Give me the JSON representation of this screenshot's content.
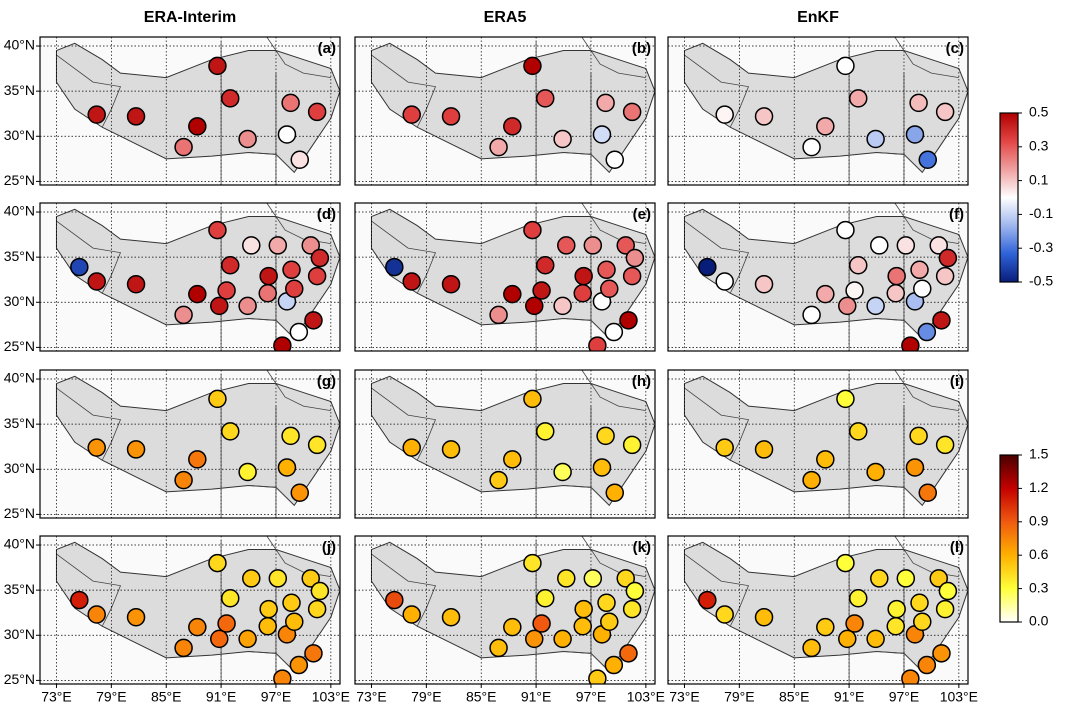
{
  "column_titles": [
    "ERA-Interim",
    "ERA5",
    "EnKF"
  ],
  "axes": {
    "xlim": [
      71.2,
      104
    ],
    "ylim": [
      24.6,
      41
    ],
    "xticks": [
      {
        "value": 73,
        "label": "73°E"
      },
      {
        "value": 79,
        "label": "79°E"
      },
      {
        "value": 85,
        "label": "85°E"
      },
      {
        "value": 91,
        "label": "91°E"
      },
      {
        "value": 97,
        "label": "97°E"
      },
      {
        "value": 103,
        "label": "103°E"
      }
    ],
    "yticks": [
      {
        "value": 25,
        "label": "25°N"
      },
      {
        "value": 30,
        "label": "30°N"
      },
      {
        "value": 35,
        "label": "35°N"
      },
      {
        "value": 40,
        "label": "40°N"
      }
    ],
    "grid": true
  },
  "colorbars": [
    {
      "range": [
        -0.5,
        0.5
      ],
      "ticks": [
        0.5,
        0.3,
        0.1,
        -0.1,
        -0.3,
        -0.5
      ],
      "colors": [
        "#081d7a",
        "#2f62d8",
        "#9fb6ee",
        "#ffffff",
        "#f0a0a0",
        "#e34545",
        "#b00000"
      ]
    },
    {
      "range": [
        0,
        1.5
      ],
      "ticks": [
        1.5,
        1.2,
        0.9,
        0.6,
        0.3,
        {
          "value": 0,
          "label": "0.0"
        }
      ],
      "colors": [
        "#ffffff",
        "#ffff3a",
        "#ffb000",
        "#f05a10",
        "#c40000",
        "#4a0000"
      ]
    }
  ],
  "chart_data": [
    {
      "type": "scatter",
      "title": "(a)",
      "x": [
        77.4,
        81.7,
        86.9,
        88.4,
        90.6,
        92.0,
        93.9,
        98.6,
        98.2,
        99.6,
        101.5
      ],
      "y": [
        32.4,
        32.2,
        28.8,
        31.1,
        37.8,
        34.2,
        29.7,
        33.7,
        30.2,
        27.4,
        32.7
      ],
      "values": [
        0.45,
        0.45,
        0.25,
        0.5,
        0.45,
        0.4,
        0.2,
        0.25,
        0.0,
        0.05,
        0.35
      ]
    },
    {
      "type": "scatter",
      "title": "(b)",
      "x": [
        77.4,
        81.7,
        86.9,
        88.4,
        90.6,
        92.0,
        93.9,
        98.6,
        98.2,
        99.6,
        101.5
      ],
      "y": [
        32.4,
        32.2,
        28.8,
        31.1,
        37.8,
        34.2,
        29.7,
        33.7,
        30.2,
        27.4,
        32.7
      ],
      "values": [
        0.35,
        0.35,
        0.15,
        0.4,
        0.5,
        0.3,
        0.1,
        0.15,
        -0.08,
        0.0,
        0.25
      ]
    },
    {
      "type": "scatter",
      "title": "(c)",
      "x": [
        77.4,
        81.7,
        86.9,
        88.4,
        90.6,
        92.0,
        93.9,
        98.6,
        98.2,
        99.6,
        101.5
      ],
      "y": [
        32.4,
        32.2,
        28.8,
        31.1,
        37.8,
        34.2,
        29.7,
        33.7,
        30.2,
        27.4,
        32.7
      ],
      "values": [
        0.02,
        0.1,
        0.0,
        0.15,
        0.0,
        0.15,
        -0.12,
        0.12,
        -0.2,
        -0.3,
        0.1
      ]
    },
    {
      "type": "scatter",
      "title": "(d)",
      "x": [
        75.5,
        77.4,
        81.7,
        86.9,
        88.4,
        90.6,
        92.0,
        91.6,
        90.8,
        93.9,
        94.3,
        96.2,
        96.1,
        97.2,
        97.7,
        98.2,
        98.7,
        99.0,
        99.5,
        100.8,
        101.8,
        101.5,
        101.1
      ],
      "y": [
        33.9,
        32.3,
        32.0,
        28.6,
        30.9,
        38.0,
        34.1,
        31.3,
        29.6,
        29.6,
        36.3,
        32.9,
        31.0,
        36.3,
        25.2,
        30.1,
        33.6,
        31.5,
        26.7,
        36.3,
        34.9,
        32.9,
        28.0
      ],
      "values": [
        -0.4,
        0.45,
        0.45,
        0.2,
        0.5,
        0.35,
        0.4,
        0.35,
        0.45,
        0.2,
        0.05,
        0.45,
        0.25,
        0.15,
        0.5,
        -0.1,
        0.35,
        0.35,
        0.0,
        0.2,
        0.4,
        0.35,
        0.45
      ]
    },
    {
      "type": "scatter",
      "title": "(e)",
      "x": [
        75.5,
        77.4,
        81.7,
        86.9,
        88.4,
        90.6,
        92.0,
        91.6,
        90.8,
        93.9,
        94.3,
        96.2,
        96.1,
        97.2,
        97.7,
        98.2,
        98.7,
        99.0,
        99.5,
        100.8,
        101.8,
        101.5,
        101.1
      ],
      "y": [
        33.9,
        32.3,
        32.0,
        28.6,
        30.9,
        38.0,
        34.1,
        31.3,
        29.6,
        29.6,
        36.3,
        32.9,
        31.0,
        36.3,
        25.2,
        30.1,
        33.6,
        31.5,
        26.7,
        36.3,
        34.9,
        32.9,
        28.0
      ],
      "values": [
        -0.45,
        0.45,
        0.45,
        0.2,
        0.5,
        0.35,
        0.4,
        0.45,
        0.5,
        0.1,
        0.3,
        0.45,
        0.35,
        0.2,
        0.35,
        0.0,
        0.3,
        0.3,
        0.0,
        0.3,
        0.2,
        0.3,
        0.5
      ]
    },
    {
      "type": "scatter",
      "title": "(f)",
      "x": [
        75.5,
        77.4,
        81.7,
        86.9,
        88.4,
        90.6,
        92.0,
        91.6,
        90.8,
        93.9,
        94.3,
        96.2,
        96.1,
        97.2,
        97.7,
        98.2,
        98.7,
        99.0,
        99.5,
        100.8,
        101.8,
        101.5,
        101.1
      ],
      "y": [
        33.9,
        32.3,
        32.0,
        28.6,
        30.9,
        38.0,
        34.1,
        31.3,
        29.6,
        29.6,
        36.3,
        32.9,
        31.0,
        36.3,
        25.2,
        30.1,
        33.6,
        31.5,
        26.7,
        36.3,
        34.9,
        32.9,
        28.0
      ],
      "values": [
        -0.5,
        0.0,
        0.1,
        0.0,
        0.15,
        0.0,
        0.1,
        0.02,
        0.2,
        -0.1,
        0.0,
        0.25,
        0.1,
        0.05,
        0.5,
        -0.15,
        0.15,
        0.0,
        -0.25,
        0.05,
        0.4,
        0.1,
        0.45
      ]
    },
    {
      "type": "scatter",
      "title": "(g)",
      "x": [
        77.4,
        81.7,
        86.9,
        88.4,
        90.6,
        92.0,
        93.9,
        98.6,
        98.2,
        99.6,
        101.5
      ],
      "y": [
        32.4,
        32.2,
        28.8,
        31.1,
        37.8,
        34.2,
        29.7,
        33.7,
        30.2,
        27.4,
        32.7
      ],
      "values": [
        0.7,
        0.7,
        0.75,
        0.8,
        0.5,
        0.45,
        0.35,
        0.4,
        0.6,
        0.7,
        0.4
      ]
    },
    {
      "type": "scatter",
      "title": "(h)",
      "x": [
        77.4,
        81.7,
        86.9,
        88.4,
        90.6,
        92.0,
        93.9,
        98.6,
        98.2,
        99.6,
        101.5
      ],
      "y": [
        32.4,
        32.2,
        28.8,
        31.1,
        37.8,
        34.2,
        29.7,
        33.7,
        30.2,
        27.4,
        32.7
      ],
      "values": [
        0.6,
        0.55,
        0.5,
        0.55,
        0.55,
        0.35,
        0.25,
        0.45,
        0.55,
        0.6,
        0.35
      ]
    },
    {
      "type": "scatter",
      "title": "(i)",
      "x": [
        77.4,
        81.7,
        86.9,
        88.4,
        90.6,
        92.0,
        93.9,
        98.6,
        98.2,
        99.6,
        101.5
      ],
      "y": [
        32.4,
        32.2,
        28.8,
        31.1,
        37.8,
        34.2,
        29.7,
        33.7,
        30.2,
        27.4,
        32.7
      ],
      "values": [
        0.5,
        0.55,
        0.6,
        0.55,
        0.3,
        0.45,
        0.6,
        0.45,
        0.7,
        0.8,
        0.4
      ]
    },
    {
      "type": "scatter",
      "title": "(j)",
      "x": [
        75.5,
        77.4,
        81.7,
        86.9,
        88.4,
        90.6,
        92.0,
        91.6,
        90.8,
        93.9,
        94.3,
        96.2,
        96.1,
        97.2,
        97.7,
        98.2,
        98.7,
        99.0,
        99.5,
        100.8,
        101.8,
        101.5,
        101.1
      ],
      "y": [
        33.9,
        32.3,
        32.0,
        28.6,
        30.9,
        38.0,
        34.1,
        31.3,
        29.6,
        29.6,
        36.3,
        32.9,
        31.0,
        36.3,
        25.2,
        30.1,
        33.6,
        31.5,
        26.7,
        36.3,
        34.9,
        32.9,
        28.0
      ],
      "values": [
        1.1,
        0.75,
        0.7,
        0.75,
        0.75,
        0.45,
        0.4,
        0.85,
        0.85,
        0.65,
        0.5,
        0.5,
        0.55,
        0.4,
        0.75,
        0.75,
        0.5,
        0.55,
        0.7,
        0.5,
        0.4,
        0.45,
        0.8
      ]
    },
    {
      "type": "scatter",
      "title": "(k)",
      "x": [
        75.5,
        77.4,
        81.7,
        86.9,
        88.4,
        90.6,
        92.0,
        91.6,
        90.8,
        93.9,
        94.3,
        96.2,
        96.1,
        97.2,
        97.7,
        98.2,
        98.7,
        99.0,
        99.5,
        100.8,
        101.8,
        101.5,
        101.1
      ],
      "y": [
        33.9,
        32.3,
        32.0,
        28.6,
        30.9,
        38.0,
        34.1,
        31.3,
        29.6,
        29.6,
        36.3,
        32.9,
        31.0,
        36.3,
        25.2,
        30.1,
        33.6,
        31.5,
        26.7,
        36.3,
        34.9,
        32.9,
        28.0
      ],
      "values": [
        0.95,
        0.6,
        0.55,
        0.55,
        0.55,
        0.4,
        0.35,
        0.9,
        0.7,
        0.6,
        0.4,
        0.55,
        0.55,
        0.25,
        0.5,
        0.6,
        0.45,
        0.5,
        0.6,
        0.45,
        0.3,
        0.4,
        0.85
      ]
    },
    {
      "type": "scatter",
      "title": "(l)",
      "x": [
        75.5,
        77.4,
        81.7,
        86.9,
        88.4,
        90.6,
        92.0,
        91.6,
        90.8,
        93.9,
        94.3,
        96.2,
        96.1,
        97.2,
        97.7,
        98.2,
        98.7,
        99.0,
        99.5,
        100.8,
        101.8,
        101.5,
        101.1
      ],
      "y": [
        33.9,
        32.3,
        32.0,
        28.6,
        30.9,
        38.0,
        34.1,
        31.3,
        29.6,
        29.6,
        36.3,
        32.9,
        31.0,
        36.3,
        25.2,
        30.1,
        33.6,
        31.5,
        26.7,
        36.3,
        34.9,
        32.9,
        28.0
      ],
      "values": [
        1.1,
        0.45,
        0.55,
        0.55,
        0.5,
        0.3,
        0.35,
        0.75,
        0.6,
        0.55,
        0.45,
        0.35,
        0.4,
        0.3,
        0.75,
        0.75,
        0.45,
        0.45,
        0.75,
        0.5,
        0.3,
        0.35,
        0.7
      ]
    }
  ]
}
